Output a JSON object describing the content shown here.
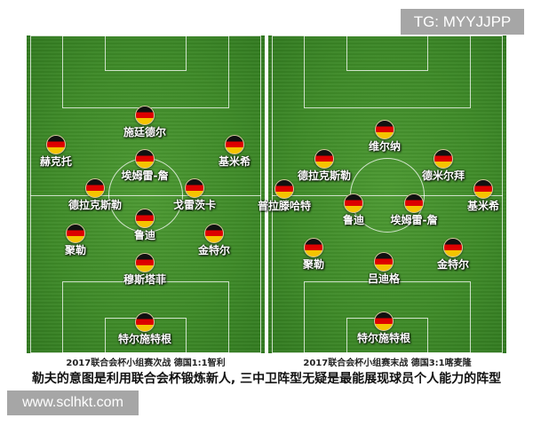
{
  "watermark_top": "TG: MYYJJPP",
  "watermark_bottom": "www.sclhkt.com",
  "flag_colors": [
    "#111111",
    "#dd0000",
    "#f5c400"
  ],
  "pitch_color": "#3e8a28",
  "left": {
    "caption": "2017联合会杯小组赛次战 德国1:1智利",
    "players": [
      "施廷德尔",
      "赫克托",
      "基米希",
      "埃姆雷-詹",
      "德拉克斯勒",
      "戈雷茨卡",
      "鲁迪",
      "聚勒",
      "金特尔",
      "穆斯塔菲",
      "特尔施特根"
    ]
  },
  "right": {
    "caption": "2017联合会杯小组赛末战 德国3:1喀麦隆",
    "players": [
      "维尔纳",
      "德拉克斯勒",
      "德米尔拜",
      "普拉滕哈特",
      "基米希",
      "鲁迪",
      "埃姆雷-詹",
      "聚勒",
      "金特尔",
      "吕迪格",
      "特尔施特根"
    ]
  },
  "headline": "勒夫的意图是利用联合会杯锻炼新人, 三中卫阵型无疑是最能展现球员个人能力的阵型"
}
